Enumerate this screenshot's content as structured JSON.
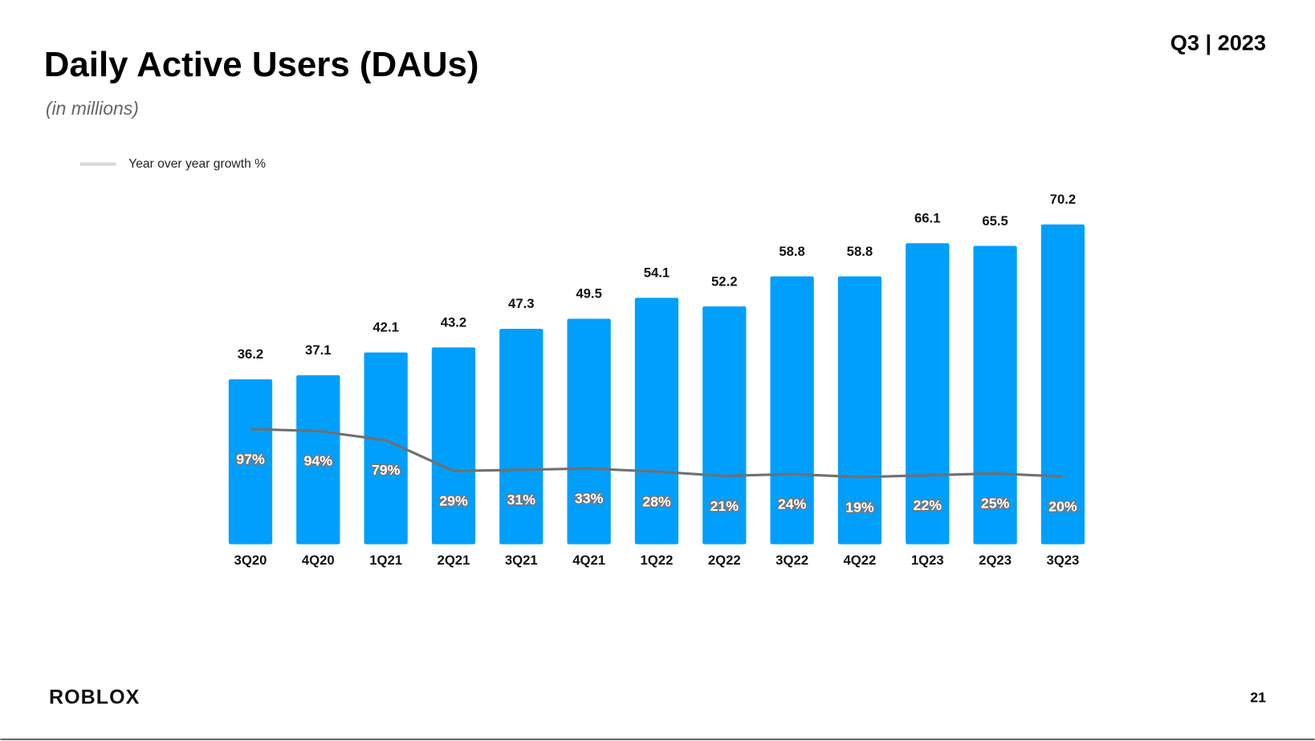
{
  "slide_label": "Q3 | 2023",
  "logo": "ROBLOX",
  "page_number": "21",
  "chart_data": {
    "type": "bar",
    "title": "Daily Active Users (DAUs)",
    "subtitle": "(in millions)",
    "categories": [
      "3Q20",
      "4Q20",
      "1Q21",
      "2Q21",
      "3Q21",
      "4Q21",
      "1Q22",
      "2Q22",
      "3Q22",
      "4Q22",
      "1Q23",
      "2Q23",
      "3Q23"
    ],
    "values": [
      36.2,
      37.1,
      42.1,
      43.2,
      47.3,
      49.5,
      54.1,
      52.2,
      58.8,
      58.8,
      66.1,
      65.5,
      70.2
    ],
    "color": "#009ffb",
    "ylim": [
      0,
      75
    ],
    "series": [
      {
        "name": "Year over year growth %",
        "type": "line",
        "axis": "y2",
        "color": "#707070",
        "values": [
          97,
          94,
          79,
          29,
          31,
          33,
          28,
          21,
          24,
          19,
          22,
          25,
          20
        ],
        "value_labels": [
          "97%",
          "94%",
          "79%",
          "29%",
          "31%",
          "33%",
          "28%",
          "21%",
          "24%",
          "19%",
          "22%",
          "25%",
          "20%"
        ]
      }
    ],
    "y2lim": [
      -90,
      465
    ],
    "legend": "top-left"
  }
}
